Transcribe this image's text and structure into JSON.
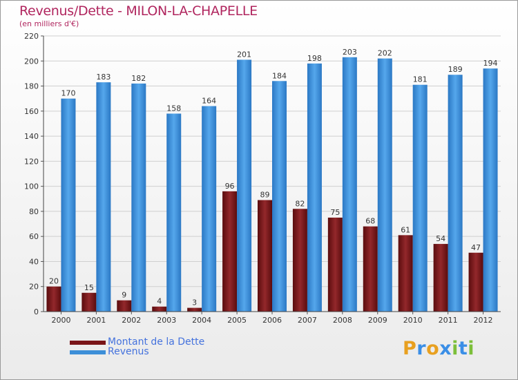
{
  "title": "Revenus/Dette - MILON-LA-CHAPELLE",
  "subtitle": "(en milliers d'€)",
  "logo": {
    "letters": [
      "P",
      "r",
      "o",
      "x",
      "i",
      "t",
      "i"
    ],
    "colors": [
      "#e8a020",
      "#3a8ee6",
      "#e8a020",
      "#3a8ee6",
      "#7cbf3a",
      "#3a8ee6",
      "#7cbf3a"
    ]
  },
  "chart_data": {
    "type": "bar",
    "categories": [
      "2000",
      "2001",
      "2002",
      "2003",
      "2004",
      "2005",
      "2006",
      "2007",
      "2008",
      "2009",
      "2010",
      "2011",
      "2012"
    ],
    "series": [
      {
        "name": "Montant de la Dette",
        "color": "#7a1518",
        "values": [
          20,
          15,
          9,
          4,
          3,
          96,
          89,
          82,
          75,
          68,
          61,
          54,
          47
        ]
      },
      {
        "name": "Revenus",
        "color": "#3d8fd8",
        "values": [
          170,
          183,
          182,
          158,
          164,
          201,
          184,
          198,
          203,
          202,
          181,
          189,
          194
        ]
      }
    ],
    "ylim": [
      0,
      220
    ],
    "yticks": [
      0,
      20,
      40,
      60,
      80,
      100,
      120,
      140,
      160,
      180,
      200,
      220
    ],
    "grid": true,
    "legend": "bottom-left"
  }
}
